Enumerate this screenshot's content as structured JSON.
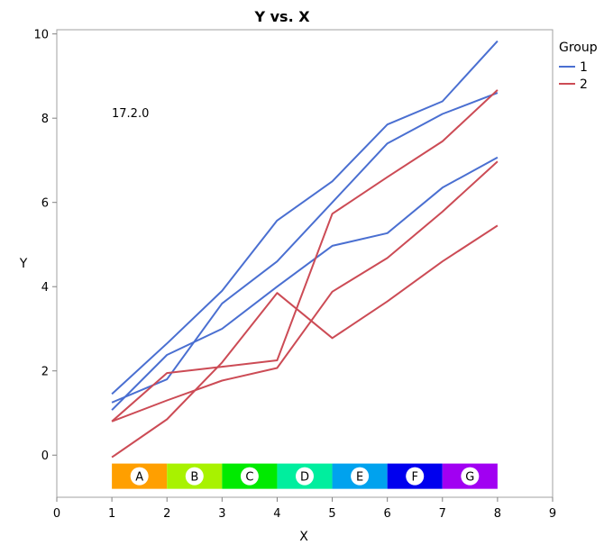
{
  "chart_data": {
    "type": "line",
    "title": "Y vs. X",
    "xlabel": "X",
    "ylabel": "Y",
    "xlim": [
      0,
      9
    ],
    "ylim": [
      -1,
      10.1
    ],
    "x_ticks": [
      0,
      1,
      2,
      3,
      4,
      5,
      6,
      7,
      8,
      9
    ],
    "y_ticks": [
      0,
      2,
      4,
      6,
      8,
      10
    ],
    "grid": false,
    "legend": {
      "title": "Group",
      "placement": "top-right",
      "entries": [
        {
          "name": "1",
          "color": "#4a6fd1"
        },
        {
          "name": "2",
          "color": "#cc4b55"
        }
      ]
    },
    "annotation": "17.2.0",
    "series": [
      {
        "group": "1",
        "color": "#4a6fd1",
        "x": [
          1,
          2,
          3,
          4,
          5,
          6,
          7,
          8
        ],
        "y": [
          1.45,
          2.65,
          3.9,
          5.57,
          6.5,
          7.85,
          8.4,
          9.83
        ]
      },
      {
        "group": "1",
        "color": "#4a6fd1",
        "x": [
          1,
          2,
          3,
          4,
          5,
          6,
          7,
          8
        ],
        "y": [
          1.25,
          1.8,
          3.6,
          4.6,
          6.0,
          7.4,
          8.1,
          8.6
        ]
      },
      {
        "group": "1",
        "color": "#4a6fd1",
        "x": [
          1,
          2,
          3,
          4,
          5,
          6,
          7,
          8
        ],
        "y": [
          1.07,
          2.38,
          3.0,
          4.0,
          4.97,
          5.27,
          6.35,
          7.07
        ]
      },
      {
        "group": "2",
        "color": "#cc4b55",
        "x": [
          1,
          2,
          3,
          4,
          5,
          6,
          7,
          8
        ],
        "y": [
          0.8,
          1.95,
          2.1,
          2.25,
          5.73,
          6.6,
          7.45,
          8.67
        ]
      },
      {
        "group": "2",
        "color": "#cc4b55",
        "x": [
          1,
          2,
          3,
          4,
          5,
          6,
          7,
          8
        ],
        "y": [
          0.8,
          1.3,
          1.77,
          2.07,
          3.88,
          4.68,
          5.78,
          6.97
        ]
      },
      {
        "group": "2",
        "color": "#cc4b55",
        "x": [
          1,
          2,
          3,
          4,
          5,
          6,
          7,
          8
        ],
        "y": [
          -0.05,
          0.85,
          2.2,
          3.85,
          2.78,
          3.65,
          4.6,
          5.45
        ]
      }
    ],
    "bands": [
      {
        "label": "A",
        "x0": 1,
        "x1": 2,
        "color": "#ff9f00"
      },
      {
        "label": "B",
        "x0": 2,
        "x1": 3,
        "color": "#a8f200"
      },
      {
        "label": "C",
        "x0": 3,
        "x1": 4,
        "color": "#00ea00"
      },
      {
        "label": "D",
        "x0": 4,
        "x1": 5,
        "color": "#00ee9e"
      },
      {
        "label": "E",
        "x0": 5,
        "x1": 6,
        "color": "#00a2ee"
      },
      {
        "label": "F",
        "x0": 6,
        "x1": 7,
        "color": "#0000ee"
      },
      {
        "label": "G",
        "x0": 7,
        "x1": 8,
        "color": "#a100f2"
      }
    ],
    "band_y_range": [
      -0.8,
      -0.2
    ]
  }
}
